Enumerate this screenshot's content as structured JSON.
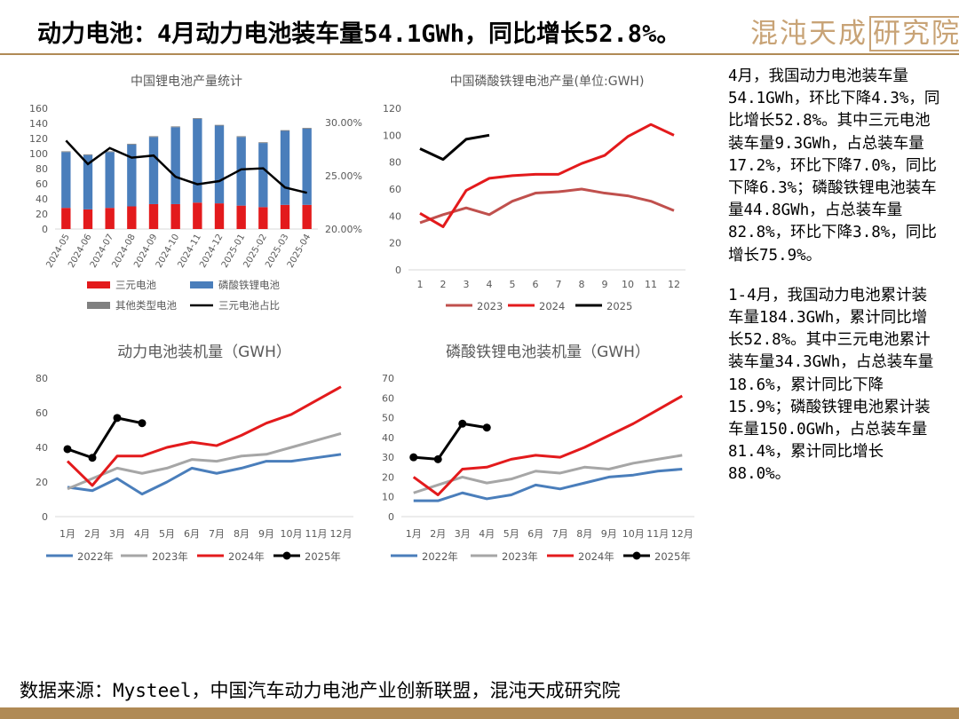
{
  "header": {
    "title": "动力电池：4月动力电池装车量54.1GWh，同比增长52.8%。",
    "brand_text": "混沌天成",
    "brand_box_text": "研究院"
  },
  "colors": {
    "red": "#e31a1c",
    "blue": "#4a7ebb",
    "gray": "#7f7f7f",
    "lightgray": "#a6a6a6",
    "salmon": "#c0504d",
    "black": "#000000",
    "gold": "#b08a55"
  },
  "side_panel": {
    "para1": "4月，我国动力电池装车量54.1GWh，环比下降4.3%，同比增长52.8%。其中三元电池装车量9.3GWh，占总装车量17.2%，环比下降7.0%，同比下降6.3%；磷酸铁锂电池装车量44.8GWh，占总装车量82.8%，环比下降3.8%，同比增长75.9%。",
    "para2": "1-4月，我国动力电池累计装车量184.3GWh，累计同比增长52.8%。其中三元电池累计装车量34.3GWh，占总装车量18.6%，累计同比下降15.9%；磷酸铁锂电池累计装车量150.0GWh，占总装车量81.4%，累计同比增长88.0%。"
  },
  "footer": {
    "source": "数据来源：Mysteel，中国汽车动力电池产业创新联盟，混沌天成研究院"
  },
  "chart_data": [
    {
      "id": "c1",
      "type": "bar",
      "stacked": true,
      "title": "中国锂电池产量统计",
      "categories": [
        "2024-05",
        "2024-06",
        "2024-07",
        "2024-08",
        "2024-09",
        "2024-10",
        "2024-11",
        "2024-12",
        "2025-01",
        "2025-02",
        "2025-03",
        "2025-04"
      ],
      "ylim": [
        0,
        160
      ],
      "yticks": [
        0,
        20,
        40,
        60,
        80,
        100,
        120,
        140,
        160
      ],
      "y2lim": [
        20,
        30
      ],
      "y2ticks": [
        "20.00%",
        "25.00%",
        "30.00%"
      ],
      "y2tick_values": [
        20,
        25,
        30
      ],
      "series": [
        {
          "name": "三元电池",
          "color": "#e31a1c",
          "values": [
            28,
            26,
            28,
            30,
            33,
            33,
            35,
            34,
            31,
            29,
            32,
            32
          ]
        },
        {
          "name": "磷酸铁锂电池",
          "color": "#4a7ebb",
          "values": [
            74,
            72,
            74,
            82,
            89,
            102,
            111,
            103,
            91,
            85,
            98,
            101
          ]
        },
        {
          "name": "其他类型电池",
          "color": "#808080",
          "values": [
            1,
            1,
            1,
            1,
            1,
            1,
            1,
            1,
            1,
            1,
            1,
            1
          ]
        }
      ],
      "line_series": {
        "name": "三元电池占比",
        "color": "#000000",
        "axis": "y2",
        "values": [
          28.3,
          26.1,
          27.6,
          26.7,
          26.9,
          24.9,
          24.2,
          24.5,
          25.6,
          25.7,
          23.9,
          23.4
        ]
      },
      "legend": [
        "三元电池",
        "磷酸铁锂电池",
        "其他类型电池",
        "三元电池占比"
      ]
    },
    {
      "id": "c2",
      "type": "line",
      "title": "中国磷酸铁锂电池产量(单位:GWH)",
      "categories": [
        "1",
        "2",
        "3",
        "4",
        "5",
        "6",
        "7",
        "8",
        "9",
        "10",
        "11",
        "12"
      ],
      "ylim": [
        0,
        120
      ],
      "yticks": [
        0,
        20,
        40,
        60,
        80,
        100,
        120
      ],
      "series": [
        {
          "name": "2023",
          "color": "#c0504d",
          "values": [
            35,
            41,
            46,
            41,
            51,
            57,
            58,
            60,
            57,
            55,
            51,
            44
          ]
        },
        {
          "name": "2024",
          "color": "#e31a1c",
          "values": [
            42,
            32,
            59,
            68,
            70,
            71,
            71,
            79,
            85,
            99,
            108,
            100
          ]
        },
        {
          "name": "2025",
          "color": "#000000",
          "values": [
            90,
            82,
            97,
            100,
            null,
            null,
            null,
            null,
            null,
            null,
            null,
            null
          ]
        }
      ]
    },
    {
      "id": "c3",
      "type": "line",
      "title": "动力电池装机量（GWH）",
      "categories": [
        "1月",
        "2月",
        "3月",
        "4月",
        "5月",
        "6月",
        "7月",
        "8月",
        "9月",
        "10月",
        "11月",
        "12月"
      ],
      "ylim": [
        0,
        80
      ],
      "yticks": [
        0,
        20,
        40,
        60,
        80
      ],
      "series": [
        {
          "name": "2022年",
          "color": "#4a7ebb",
          "values": [
            17,
            15,
            22,
            13,
            20,
            28,
            25,
            28,
            32,
            32,
            34,
            36
          ]
        },
        {
          "name": "2023年",
          "color": "#a6a6a6",
          "values": [
            16,
            22,
            28,
            25,
            28,
            33,
            32,
            35,
            36,
            40,
            44,
            48
          ]
        },
        {
          "name": "2024年",
          "color": "#e31a1c",
          "values": [
            32,
            18,
            35,
            35,
            40,
            43,
            41,
            47,
            54,
            59,
            67,
            75
          ]
        },
        {
          "name": "2025年",
          "color": "#000000",
          "markers": true,
          "values": [
            39,
            34,
            57,
            54,
            null,
            null,
            null,
            null,
            null,
            null,
            null,
            null
          ]
        }
      ]
    },
    {
      "id": "c4",
      "type": "line",
      "title": "磷酸铁锂电池装机量（GWH）",
      "categories": [
        "1月",
        "2月",
        "3月",
        "4月",
        "5月",
        "6月",
        "7月",
        "8月",
        "9月",
        "10月",
        "11月",
        "12月"
      ],
      "ylim": [
        0,
        70
      ],
      "yticks": [
        0,
        10,
        20,
        30,
        40,
        50,
        60,
        70
      ],
      "series": [
        {
          "name": "2022年",
          "color": "#4a7ebb",
          "values": [
            8,
            8,
            12,
            9,
            11,
            16,
            14,
            17,
            20,
            21,
            23,
            24
          ]
        },
        {
          "name": "2023年",
          "color": "#a6a6a6",
          "values": [
            12,
            16,
            20,
            17,
            19,
            23,
            22,
            25,
            24,
            27,
            29,
            31
          ]
        },
        {
          "name": "2024年",
          "color": "#e31a1c",
          "values": [
            20,
            11,
            24,
            25,
            29,
            31,
            30,
            35,
            41,
            47,
            54,
            61
          ]
        },
        {
          "name": "2025年",
          "color": "#000000",
          "markers": true,
          "values": [
            30,
            29,
            47,
            45,
            null,
            null,
            null,
            null,
            null,
            null,
            null,
            null
          ]
        }
      ]
    }
  ]
}
